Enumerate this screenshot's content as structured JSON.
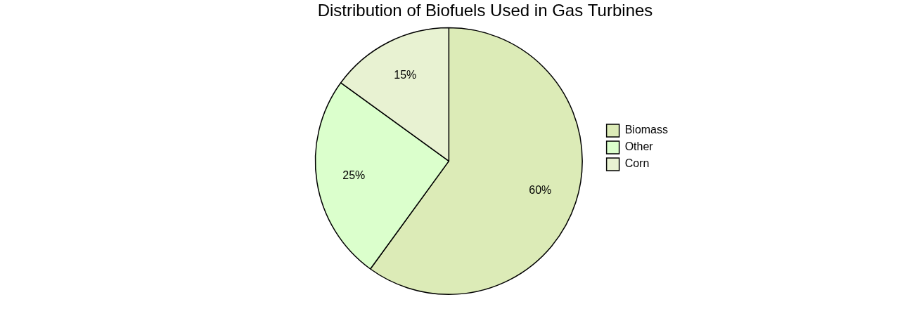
{
  "chart_data": {
    "type": "pie",
    "title": "Distribution of Biofuels Used in Gas Turbines",
    "categories": [
      "Biomass",
      "Other",
      "Corn"
    ],
    "values": [
      60,
      25,
      15
    ],
    "value_labels": [
      "60%",
      "25%",
      "15%"
    ],
    "colors": [
      "#dcebb7",
      "#dbffcc",
      "#e8f2d2"
    ],
    "legend": "right",
    "data_labels": true
  }
}
